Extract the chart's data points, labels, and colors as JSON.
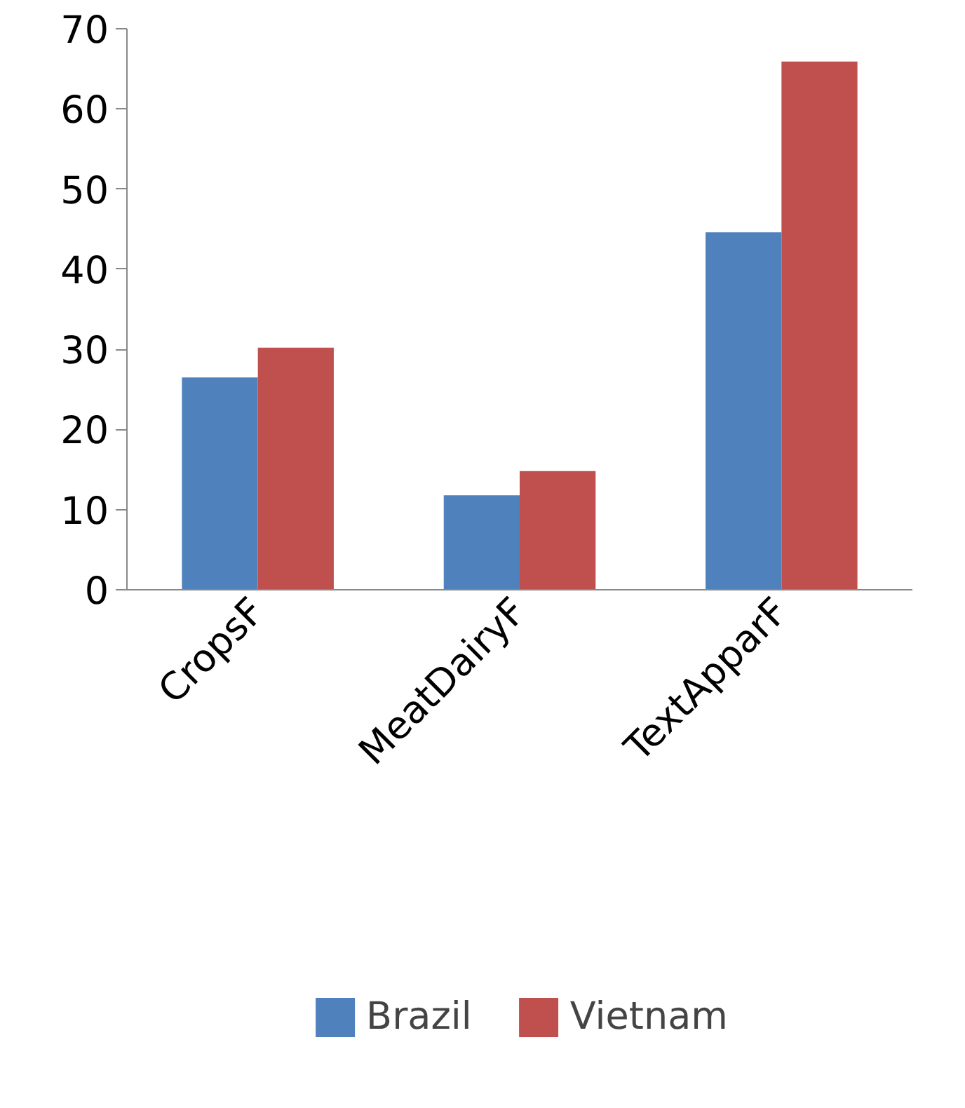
{
  "chart_data": {
    "type": "bar",
    "categories": [
      "CropsF",
      "MeatDairyF",
      "TextApparF"
    ],
    "series": [
      {
        "name": "Brazil",
        "color": "#4f81bd",
        "values": [
          26.5,
          11.8,
          44.6
        ]
      },
      {
        "name": "Vietnam",
        "color": "#c0504d",
        "values": [
          30.2,
          14.8,
          65.9
        ]
      }
    ],
    "ylim": [
      0,
      70
    ],
    "yticks": [
      0,
      10,
      20,
      30,
      40,
      50,
      60,
      70
    ],
    "grid": false,
    "legend": "bottom"
  }
}
